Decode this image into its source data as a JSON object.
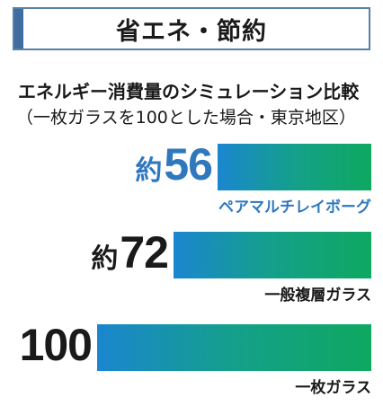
{
  "header": {
    "title": "省エネ・節約"
  },
  "subtitle": "エネルギー消費量のシミュレーション比較",
  "note": "（一枚ガラスを100とした場合・東京地区）",
  "colors": {
    "accent": "#3f6da0",
    "highlight_text": "#2f78bd",
    "bar_gradient_start": "#1a86cf",
    "bar_gradient_end": "#0ea860"
  },
  "chart_data": {
    "type": "bar",
    "orientation": "horizontal",
    "categories": [
      "ペアマルチレイボーグ",
      "一般複層ガラス",
      "一枚ガラス"
    ],
    "values": [
      56,
      72,
      100
    ],
    "value_prefixes": [
      "約",
      "約",
      ""
    ],
    "highlighted": [
      true,
      false,
      false
    ],
    "xlim": [
      0,
      100
    ],
    "grid": false
  }
}
